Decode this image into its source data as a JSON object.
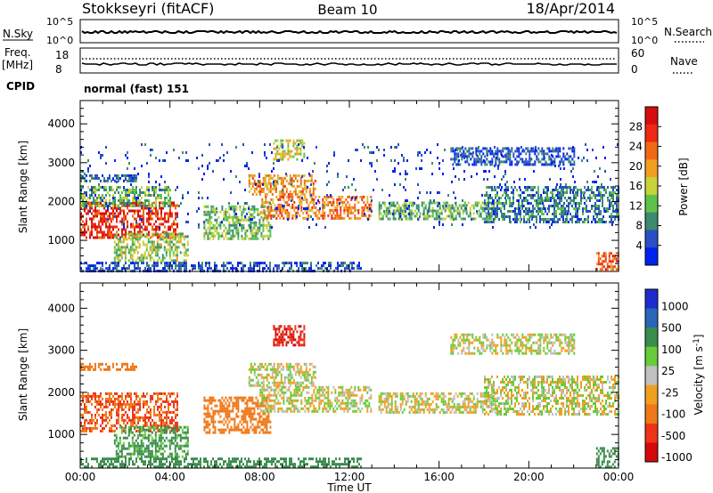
{
  "header": {
    "station": "Stokkseyri (fitACF)",
    "beam": "Beam 10",
    "date": "18/Apr/2014"
  },
  "control_panels": {
    "nsky_label": "N.Sky",
    "nsky_ticks": [
      "10^5",
      "10^0"
    ],
    "nsearch_label": "N.Search",
    "nsearch_ticks": [
      "10^5",
      "10^0"
    ],
    "freq_label": "Freq.",
    "freq_unit": "[MHz]",
    "freq_ticks": [
      "18",
      "8"
    ],
    "nave_label": "Nave",
    "nave_ticks": [
      "60",
      "0"
    ],
    "cpid_label": "CPID",
    "cpid_value": "normal (fast) 151"
  },
  "colors": {
    "power_scale": [
      "#0022ee",
      "#2a4fc4",
      "#3c8a70",
      "#5ec24a",
      "#c8d23a",
      "#f0a020",
      "#f06a14",
      "#ee2a14",
      "#d40e0e"
    ],
    "velocity_scale": [
      "#1e2ccc",
      "#2a66b8",
      "#3a8c4c",
      "#66cc3a",
      "#c0c0c0",
      "#f0a020",
      "#f07818",
      "#ee3418",
      "#d40a0a"
    ],
    "ground_scatter": "#c0c0c0"
  },
  "chart_data": [
    {
      "type": "heatmap",
      "name": "power",
      "ylabel": "Slant Range [km]",
      "yticks": [
        "1000",
        "2000",
        "3000",
        "4000"
      ],
      "ylim": [
        200,
        4600
      ],
      "xlim": [
        "00:00",
        "24:00"
      ],
      "colorbar_label": "Power [dB]",
      "colorbar_ticks": [
        "4",
        "8",
        "12",
        "16",
        "20",
        "24",
        "28"
      ],
      "colorbar_range": [
        0,
        32
      ],
      "bands": [
        {
          "t": [
            0.0,
            4.3
          ],
          "r": [
            1100,
            2000
          ],
          "v": 27
        },
        {
          "t": [
            0.0,
            4.0
          ],
          "r": [
            1900,
            2400
          ],
          "v": 12
        },
        {
          "t": [
            0.0,
            2.5
          ],
          "r": [
            2550,
            2700
          ],
          "v": 6
        },
        {
          "t": [
            1.5,
            4.8
          ],
          "r": [
            500,
            1200
          ],
          "v": 14
        },
        {
          "t": [
            5.5,
            8.5
          ],
          "r": [
            1050,
            1900
          ],
          "v": 13
        },
        {
          "t": [
            7.5,
            10.5
          ],
          "r": [
            2150,
            2700
          ],
          "v": 21
        },
        {
          "t": [
            8.0,
            13.0
          ],
          "r": [
            1550,
            2150
          ],
          "v": 22
        },
        {
          "t": [
            13.3,
            18.5
          ],
          "r": [
            1550,
            2000
          ],
          "v": 12
        },
        {
          "t": [
            18.0,
            24.0
          ],
          "r": [
            1500,
            2400
          ],
          "v": 8
        },
        {
          "t": [
            16.5,
            22.0
          ],
          "r": [
            2950,
            3400
          ],
          "v": 5
        },
        {
          "t": [
            8.6,
            10.0
          ],
          "r": [
            3100,
            3600
          ],
          "v": 16
        },
        {
          "t": [
            23.0,
            24.0
          ],
          "r": [
            250,
            700
          ],
          "v": 24
        },
        {
          "t": [
            0.0,
            12.5
          ],
          "r": [
            200,
            450
          ],
          "v": 5
        },
        {
          "t": [
            0.0,
            24.0
          ],
          "r": [
            1300,
            3500
          ],
          "v": 4
        }
      ]
    },
    {
      "type": "heatmap",
      "name": "velocity",
      "ylabel": "Slant Range [km]",
      "yticks": [
        "1000",
        "2000",
        "3000",
        "4000"
      ],
      "ylim": [
        200,
        4600
      ],
      "xlim": [
        "00:00",
        "24:00"
      ],
      "xlabel": "Time UT",
      "xticks": [
        "00:00",
        "04:00",
        "08:00",
        "12:00",
        "16:00",
        "20:00",
        "00:00"
      ],
      "colorbar_label": "Velocity [m s^-1]",
      "colorbar_ticks": [
        "1000",
        "500",
        "100",
        "25",
        "-25",
        "-100",
        "-500",
        "-1000"
      ],
      "bands": [
        {
          "t": [
            0.0,
            4.3
          ],
          "r": [
            1100,
            2000
          ],
          "v": -500
        },
        {
          "t": [
            1.5,
            4.8
          ],
          "r": [
            500,
            1200
          ],
          "v": 150
        },
        {
          "t": [
            5.5,
            8.5
          ],
          "r": [
            1050,
            1900
          ],
          "v": -300
        },
        {
          "t": [
            7.5,
            10.5
          ],
          "r": [
            2150,
            2700
          ],
          "v": 0
        },
        {
          "t": [
            8.0,
            13.0
          ],
          "r": [
            1550,
            2150
          ],
          "v": 0
        },
        {
          "t": [
            13.3,
            18.5
          ],
          "r": [
            1550,
            2000
          ],
          "v": 0
        },
        {
          "t": [
            18.0,
            24.0
          ],
          "r": [
            1500,
            2400
          ],
          "v": 0
        },
        {
          "t": [
            16.5,
            22.0
          ],
          "r": [
            2950,
            3400
          ],
          "v": 0
        },
        {
          "t": [
            8.6,
            10.0
          ],
          "r": [
            3100,
            3600
          ],
          "v": -1000
        },
        {
          "t": [
            23.0,
            24.0
          ],
          "r": [
            250,
            700
          ],
          "v": 400
        },
        {
          "t": [
            0.0,
            12.5
          ],
          "r": [
            200,
            450
          ],
          "v": 200
        },
        {
          "t": [
            0.0,
            2.5
          ],
          "r": [
            2550,
            2700
          ],
          "v": -200
        }
      ]
    }
  ]
}
